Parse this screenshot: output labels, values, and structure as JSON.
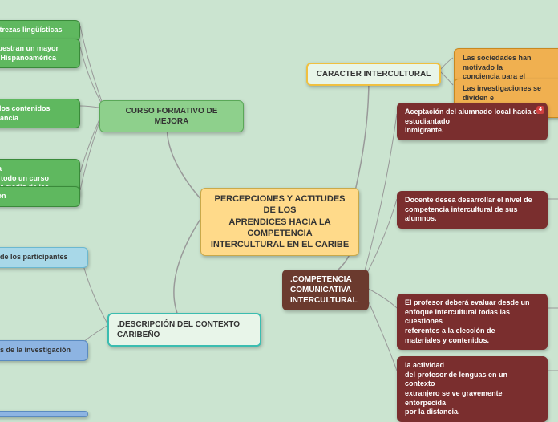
{
  "center": {
    "title": "PERCEPCIONES Y ACTITUDES DE LOS\nAPRENDICES  HACIA LA\nCOMPETENCIA\nINTERCULTURAL EN EL CARIBE"
  },
  "caracter": {
    "label": "CARACTER INTERCULTURAL",
    "child1": "Las sociedades han motivado la\nconciencia para el desarrollo de\ncompetencia comunicativa inter",
    "child2": "Las investigaciones se dividen e\nobjetivos principales"
  },
  "curso": {
    "label": "CURSO FORMATIVO DE MEJORA",
    "child1": "us destrezas lingüísticas",
    "child2": "ños muestran un mayor\nura de Hispanoamérica",
    "child3": "ivos y los contenidos\nn relevancia",
    "child4": "etencia\nrgo de todo un curso\naria por medio de las",
    "child5": "aluación"
  },
  "competencia": {
    "label": ".COMPETENCIA\nCOMUNICATIVA\nINTERCULTURAL",
    "box1": "Aceptación del alumnado local hacia el\nestudiantado\ninmigrante.",
    "box2": "Docente desea desarrollar el nivel de\ncompetencia intercultural de sus alumnos.",
    "box3": "El profesor deberá evaluar desde un\nenfoque intercultural todas las cuestiones\nreferentes a la elección de\nmateriales y contenidos.",
    "box4": "la actividad\ndel profesor de lenguas en un contexto\nextranjero se ve gravemente entorpecida\npor la distancia."
  },
  "descripcion": {
    "label": ".DESCRIPCIÓN DEL CONTEXTO\nCARIBEÑO",
    "child1": "ipción de los participantes",
    "child2": "bjetivos de la investigación"
  },
  "colors": {
    "bg": "#cbe4d0",
    "center": "#ffda8a",
    "yellow": "#f0c040",
    "teal": "#3bbdb0",
    "green": "#8ed08c",
    "brown": "#6b3a2e",
    "darkred": "#7a2e2e",
    "blue": "#8db4e2",
    "lightblue": "#a8d8e8",
    "greenfill": "#5fb85f",
    "orange": "#f0b050",
    "line": "#999"
  }
}
